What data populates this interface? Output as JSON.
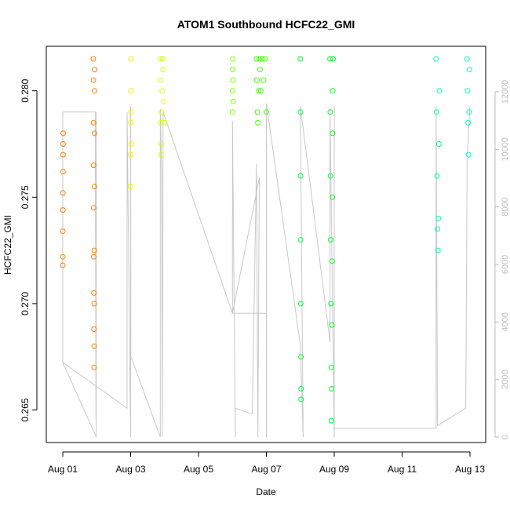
{
  "chart_data": {
    "type": "scatter",
    "title": "ATOM1 Southbound HCFC22_GMI",
    "xlabel": "Date",
    "ylabel": "HCFC22_GMI",
    "x_axis": {
      "type": "date",
      "range": [
        "2016-08-01",
        "2016-08-13"
      ]
    },
    "y_axis": {
      "range": [
        0.2641,
        0.2815
      ],
      "ticks": [
        0.265,
        0.27,
        0.275,
        0.28
      ],
      "tick_labels": [
        "0.265",
        "0.270",
        "0.275",
        "0.280"
      ]
    },
    "x_ticks": [
      {
        "date": "2016-08-01",
        "label": "Aug 01"
      },
      {
        "date": "2016-08-03",
        "label": "Aug 03"
      },
      {
        "date": "2016-08-05",
        "label": "Aug 05"
      },
      {
        "date": "2016-08-07",
        "label": "Aug 07"
      },
      {
        "date": "2016-08-09",
        "label": "Aug 09"
      },
      {
        "date": "2016-08-11",
        "label": "Aug 11"
      },
      {
        "date": "2016-08-13",
        "label": "Aug 13"
      }
    ],
    "secondary_axis": {
      "position": "right",
      "color": "#bdbdbd",
      "range": [
        0,
        12000
      ],
      "ticks": [
        0,
        2000,
        4000,
        6000,
        8000,
        10000,
        12000
      ],
      "tick_labels": [
        "0",
        "2000",
        "4000",
        "6000",
        "8000",
        "10000",
        "12000"
      ]
    },
    "grid": false,
    "altitude_trace": {
      "color": "#c8c8c8",
      "points": [
        [
          "2016-08-01T00:00",
          2600
        ],
        [
          "2016-08-01T00:00",
          11300
        ],
        [
          "2016-08-01T23:00",
          11300
        ],
        [
          "2016-08-01T23:30",
          600
        ],
        [
          "2016-08-01T23:45",
          11300
        ],
        [
          "2016-08-01T23:40",
          0
        ],
        [
          "2016-08-01T00:00",
          2600
        ],
        [
          "2016-08-02T21:30",
          1000
        ],
        [
          "2016-08-02T21:30",
          11300
        ],
        [
          "2016-08-03T00:00",
          0
        ],
        [
          "2016-08-03T00:00",
          11500
        ],
        [
          "2016-08-03T00:10",
          2800
        ],
        [
          "2016-08-03T21:00",
          0
        ],
        [
          "2016-08-03T21:00",
          11400
        ],
        [
          "2016-08-03T22:00",
          9000
        ],
        [
          "2016-08-03T22:30",
          0
        ],
        [
          "2016-08-03T23:00",
          11300
        ],
        [
          "2016-08-06T00:00",
          4300
        ],
        [
          "2016-08-06T00:00",
          11000
        ],
        [
          "2016-08-06T02:00",
          0
        ],
        [
          "2016-08-06T02:00",
          1000
        ],
        [
          "2016-08-06T14:00",
          800
        ],
        [
          "2016-08-06T17:00",
          9500
        ],
        [
          "2016-08-06T18:00",
          0
        ],
        [
          "2016-08-06T19:00",
          9000
        ],
        [
          "2016-08-06T00:00",
          4300
        ],
        [
          "2016-08-07T00:00",
          4300
        ],
        [
          "2016-08-07T00:00",
          0
        ],
        [
          "2016-08-07T00:00",
          11600
        ],
        [
          "2016-08-08T00:00",
          3200
        ],
        [
          "2016-08-08T02:00",
          0
        ],
        [
          "2016-08-08T00:00",
          11500
        ],
        [
          "2016-08-08T21:00",
          3300
        ],
        [
          "2016-08-08T21:00",
          11400
        ],
        [
          "2016-08-09T00:00",
          0
        ],
        [
          "2016-08-09T00:00",
          11500
        ],
        [
          "2016-08-09T00:00",
          300
        ],
        [
          "2016-08-12T00:00",
          300
        ],
        [
          "2016-08-12T00:00",
          11500
        ],
        [
          "2016-08-12T01:00",
          400
        ],
        [
          "2016-08-12T21:00",
          1000
        ],
        [
          "2016-08-12T22:00",
          9700
        ],
        [
          "2016-08-13T00:00",
          11500
        ]
      ]
    },
    "series": [
      {
        "color": "#ff8000",
        "points": [
          [
            "2016-08-01T00:00",
            0.2718
          ],
          [
            "2016-08-01T00:02",
            0.2722
          ],
          [
            "2016-08-01T00:04",
            0.2734
          ],
          [
            "2016-08-01T00:06",
            0.2744
          ],
          [
            "2016-08-01T00:08",
            0.2752
          ],
          [
            "2016-08-01T00:10",
            0.2762
          ],
          [
            "2016-08-01T00:12",
            0.277
          ],
          [
            "2016-08-01T00:14",
            0.2775
          ],
          [
            "2016-08-01T00:16",
            0.278
          ],
          [
            "2016-08-01T21:36",
            0.2815
          ],
          [
            "2016-08-01T21:40",
            0.2805
          ],
          [
            "2016-08-01T21:44",
            0.2785
          ],
          [
            "2016-08-01T21:48",
            0.2765
          ],
          [
            "2016-08-01T21:52",
            0.2745
          ],
          [
            "2016-08-01T21:56",
            0.2722
          ],
          [
            "2016-08-01T22:00",
            0.2705
          ],
          [
            "2016-08-01T22:04",
            0.2688
          ],
          [
            "2016-08-01T22:08",
            0.267
          ],
          [
            "2016-08-01T22:12",
            0.268
          ],
          [
            "2016-08-01T22:16",
            0.27
          ],
          [
            "2016-08-01T22:20",
            0.2725
          ],
          [
            "2016-08-01T22:24",
            0.2755
          ],
          [
            "2016-08-01T22:28",
            0.278
          ],
          [
            "2016-08-01T22:32",
            0.28
          ],
          [
            "2016-08-01T22:36",
            0.281
          ]
        ]
      },
      {
        "color": "#ffe600",
        "points": [
          [
            "2016-08-03T00:00",
            0.2755
          ],
          [
            "2016-08-03T00:04",
            0.277
          ],
          [
            "2016-08-03T00:08",
            0.2785
          ],
          [
            "2016-08-03T00:12",
            0.28
          ],
          [
            "2016-08-03T00:16",
            0.2815
          ],
          [
            "2016-08-03T00:20",
            0.279
          ],
          [
            "2016-08-03T00:24",
            0.2775
          ]
        ]
      },
      {
        "color": "#d8ff00",
        "points": [
          [
            "2016-08-03T21:00",
            0.2815
          ],
          [
            "2016-08-03T21:10",
            0.2805
          ],
          [
            "2016-08-03T21:20",
            0.2785
          ],
          [
            "2016-08-03T21:30",
            0.277
          ],
          [
            "2016-08-03T21:40",
            0.2775
          ],
          [
            "2016-08-03T22:00",
            0.279
          ],
          [
            "2016-08-03T22:20",
            0.28
          ],
          [
            "2016-08-03T22:40",
            0.2815
          ],
          [
            "2016-08-03T23:00",
            0.281
          ],
          [
            "2016-08-03T23:20",
            0.2795
          ],
          [
            "2016-08-03T23:40",
            0.2785
          ]
        ]
      },
      {
        "color": "#80ff00",
        "points": [
          [
            "2016-08-06T00:00",
            0.279
          ],
          [
            "2016-08-06T00:06",
            0.28
          ],
          [
            "2016-08-06T00:12",
            0.281
          ],
          [
            "2016-08-06T00:18",
            0.2815
          ],
          [
            "2016-08-06T00:24",
            0.2805
          ],
          [
            "2016-08-06T00:30",
            0.2795
          ]
        ]
      },
      {
        "color": "#40ff00",
        "points": [
          [
            "2016-08-06T17:00",
            0.2815
          ],
          [
            "2016-08-06T17:20",
            0.2805
          ],
          [
            "2016-08-06T17:40",
            0.279
          ],
          [
            "2016-08-06T18:00",
            0.2785
          ],
          [
            "2016-08-06T18:30",
            0.28
          ],
          [
            "2016-08-06T19:00",
            0.2815
          ],
          [
            "2016-08-06T19:30",
            0.281
          ],
          [
            "2016-08-06T20:00",
            0.28
          ],
          [
            "2016-08-06T21:00",
            0.2815
          ],
          [
            "2016-08-06T22:00",
            0.2805
          ],
          [
            "2016-08-06T23:00",
            0.2815
          ],
          [
            "2016-08-07T00:00",
            0.279
          ]
        ]
      },
      {
        "color": "#00ff40",
        "points": [
          [
            "2016-08-08T00:00",
            0.2815
          ],
          [
            "2016-08-08T00:05",
            0.279
          ],
          [
            "2016-08-08T00:10",
            0.276
          ],
          [
            "2016-08-08T00:15",
            0.273
          ],
          [
            "2016-08-08T00:20",
            0.27
          ],
          [
            "2016-08-08T00:25",
            0.2675
          ],
          [
            "2016-08-08T00:30",
            0.2655
          ],
          [
            "2016-08-08T00:35",
            0.266
          ]
        ]
      },
      {
        "color": "#00ff20",
        "points": [
          [
            "2016-08-08T21:00",
            0.2815
          ],
          [
            "2016-08-08T21:10",
            0.279
          ],
          [
            "2016-08-08T21:20",
            0.276
          ],
          [
            "2016-08-08T21:30",
            0.273
          ],
          [
            "2016-08-08T21:40",
            0.27
          ],
          [
            "2016-08-08T21:50",
            0.267
          ],
          [
            "2016-08-08T22:00",
            0.2645
          ],
          [
            "2016-08-08T22:10",
            0.266
          ],
          [
            "2016-08-08T22:20",
            0.269
          ],
          [
            "2016-08-08T22:30",
            0.272
          ],
          [
            "2016-08-08T22:40",
            0.275
          ],
          [
            "2016-08-08T22:50",
            0.278
          ],
          [
            "2016-08-08T23:00",
            0.28
          ],
          [
            "2016-08-08T23:10",
            0.2815
          ]
        ]
      },
      {
        "color": "#00ffb0",
        "points": [
          [
            "2016-08-12T00:00",
            0.2815
          ],
          [
            "2016-08-12T00:20",
            0.279
          ],
          [
            "2016-08-12T00:40",
            0.276
          ],
          [
            "2016-08-12T01:00",
            0.2735
          ],
          [
            "2016-08-12T01:20",
            0.2725
          ],
          [
            "2016-08-12T01:40",
            0.274
          ],
          [
            "2016-08-12T02:00",
            0.2775
          ],
          [
            "2016-08-12T02:20",
            0.28
          ]
        ]
      },
      {
        "color": "#00ffc0",
        "points": [
          [
            "2016-08-12T22:00",
            0.2815
          ],
          [
            "2016-08-12T22:20",
            0.28
          ],
          [
            "2016-08-12T22:40",
            0.2785
          ],
          [
            "2016-08-12T23:00",
            0.277
          ],
          [
            "2016-08-12T23:20",
            0.279
          ],
          [
            "2016-08-12T23:40",
            0.281
          ]
        ]
      }
    ]
  }
}
